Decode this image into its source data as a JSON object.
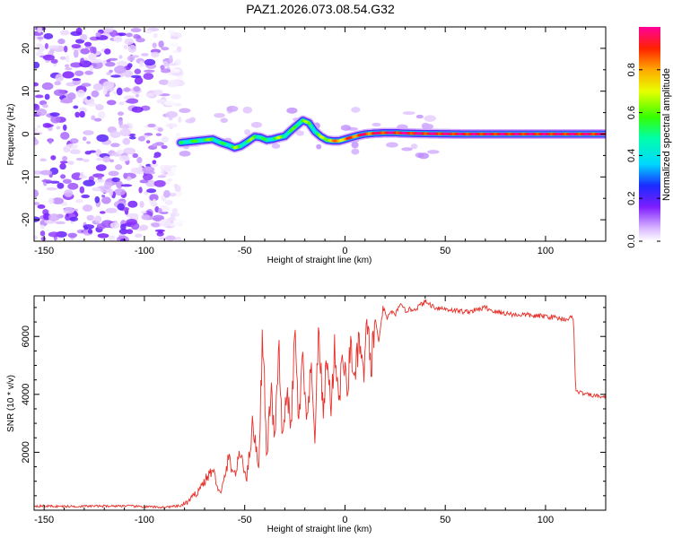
{
  "chart_data": [
    {
      "type": "heatmap",
      "title": "PAZ1.2026.073.08.54.G32",
      "xlabel": "Height of straight line (km)",
      "ylabel": "Frequency (Hz)",
      "xlim": [
        -155,
        130
      ],
      "ylim": [
        -25,
        25
      ],
      "xticks": [
        -150,
        -100,
        -50,
        0,
        50,
        100
      ],
      "yticks": [
        -20,
        -10,
        0,
        10,
        20
      ],
      "noise_region": {
        "x_range": [
          -155,
          -82
        ],
        "freq_range": [
          -25,
          25
        ],
        "amplitude_range": [
          0.02,
          0.2
        ]
      },
      "frequency_track": {
        "x": [
          -82,
          -78,
          -74,
          -70,
          -66,
          -62,
          -58,
          -55,
          -52,
          -48,
          -45,
          -42,
          -39,
          -36,
          -33,
          -30,
          -27,
          -24,
          -21,
          -18,
          -15,
          -12,
          -9,
          -6,
          -3,
          0,
          3,
          6,
          10,
          15,
          20,
          25,
          30,
          40,
          60,
          90,
          130
        ],
        "freq": [
          -2,
          -1.8,
          -1.6,
          -1.4,
          -1.2,
          -2.0,
          -2.6,
          -3.2,
          -2.8,
          -1.6,
          -0.6,
          -0.8,
          -1.4,
          -1.2,
          -0.8,
          -0.5,
          0.8,
          2.0,
          3.2,
          2.6,
          0.6,
          -0.6,
          -1.4,
          -1.6,
          -1.6,
          -1.2,
          -0.8,
          -0.4,
          0.0,
          0.2,
          0.3,
          0.3,
          0.2,
          0.1,
          0.0,
          0.0,
          0.0
        ],
        "amplitude": [
          0.45,
          0.5,
          0.5,
          0.55,
          0.55,
          0.45,
          0.5,
          0.6,
          0.5,
          0.55,
          0.6,
          0.5,
          0.45,
          0.55,
          0.6,
          0.55,
          0.5,
          0.55,
          0.6,
          0.55,
          0.5,
          0.6,
          0.7,
          0.75,
          0.8,
          0.8,
          0.85,
          0.9,
          0.9,
          0.9,
          0.95,
          0.95,
          0.95,
          0.95,
          0.95,
          0.95,
          0.95
        ]
      },
      "colorbar": {
        "label": "Normalized spectral amplitude",
        "range": [
          0,
          1
        ],
        "ticks": [
          0.0,
          0.2,
          0.4,
          0.6,
          0.8
        ],
        "tick_labels": [
          "0.0",
          "0.2",
          "0.4",
          "0.6",
          "0.8"
        ],
        "colormap": "rainbow-with-magenta"
      }
    },
    {
      "type": "line",
      "xlabel": "Height of straight line (km)",
      "ylabel": "SNR (10 * v/v)",
      "xlim": [
        -155,
        130
      ],
      "ylim": [
        0,
        7400
      ],
      "xticks": [
        -150,
        -100,
        -50,
        0,
        50,
        100
      ],
      "yticks": [
        2000,
        4000,
        6000
      ],
      "series": [
        {
          "name": "SNR",
          "color": "#e8302a",
          "x": [
            -155,
            -140,
            -125,
            -110,
            -100,
            -90,
            -82,
            -78,
            -74,
            -70,
            -66,
            -62,
            -58,
            -55,
            -52,
            -49,
            -46,
            -43,
            -41,
            -39,
            -37,
            -35,
            -33,
            -31,
            -29,
            -27,
            -25,
            -23,
            -21,
            -19,
            -17,
            -15,
            -13,
            -11,
            -9,
            -7,
            -5,
            -3,
            -1,
            1,
            3,
            5,
            7,
            9,
            11,
            13,
            15,
            17,
            19,
            21,
            23,
            25,
            27,
            30,
            35,
            40,
            45,
            50,
            55,
            60,
            65,
            70,
            75,
            80,
            85,
            90,
            95,
            100,
            105,
            110,
            114,
            115,
            116,
            120,
            125,
            130
          ],
          "y": [
            150,
            130,
            140,
            150,
            120,
            100,
            150,
            300,
            600,
            1000,
            1400,
            500,
            1800,
            1200,
            2000,
            1100,
            3000,
            1500,
            6300,
            1600,
            4200,
            2400,
            5500,
            2200,
            4400,
            2600,
            6100,
            3000,
            5200,
            2800,
            4800,
            2600,
            6200,
            3400,
            5200,
            3600,
            5600,
            3800,
            5400,
            4000,
            5800,
            4300,
            6000,
            4500,
            6200,
            5000,
            6600,
            5800,
            7000,
            6600,
            6900,
            6700,
            7100,
            6900,
            6950,
            7200,
            7000,
            6950,
            6900,
            6850,
            6900,
            7000,
            6850,
            6800,
            6750,
            6750,
            6700,
            6700,
            6650,
            6600,
            6650,
            4100,
            4100,
            4000,
            3950,
            3900
          ]
        }
      ]
    }
  ]
}
